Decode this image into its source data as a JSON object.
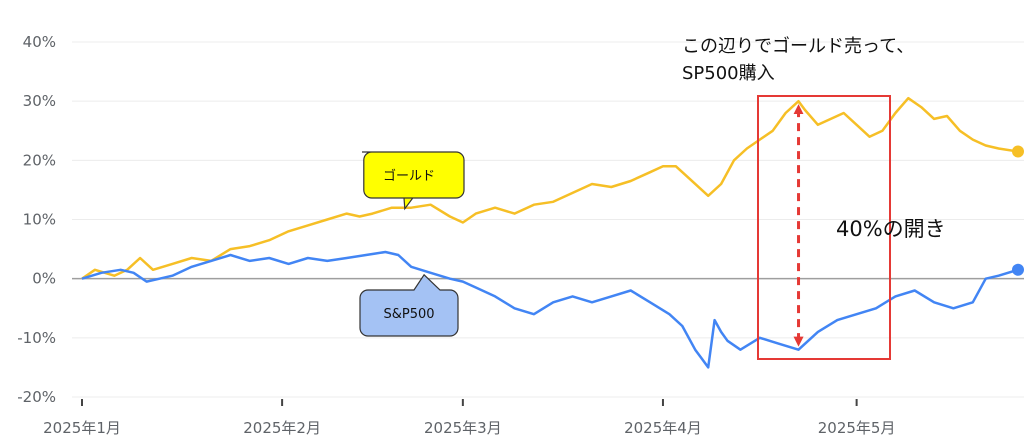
{
  "chart_data": {
    "type": "line",
    "title": "",
    "xlabel": "",
    "ylabel": "",
    "ylim": [
      -20,
      40
    ],
    "y_ticks": [
      40,
      30,
      20,
      10,
      0,
      -10,
      -20
    ],
    "y_tick_labels": [
      "40%",
      "30%",
      "20%",
      "10%",
      "0%",
      "-10%",
      "-20%"
    ],
    "x_tick_labels": [
      "2025年1月",
      "2025年2月",
      "2025年3月",
      "2025年4月",
      "2025年5月"
    ],
    "x_tick_dates": [
      "2025-01-01",
      "2025-02-01",
      "2025-03-01",
      "2025-04-01",
      "2025-05-01"
    ],
    "grid": true,
    "series": [
      {
        "name": "ゴールド",
        "color": "#f6bf26",
        "points": [
          [
            "2025-01-01",
            0
          ],
          [
            "2025-01-03",
            1.5
          ],
          [
            "2025-01-06",
            0.5
          ],
          [
            "2025-01-08",
            1.5
          ],
          [
            "2025-01-10",
            3.5
          ],
          [
            "2025-01-12",
            1.5
          ],
          [
            "2025-01-15",
            2.5
          ],
          [
            "2025-01-18",
            3.5
          ],
          [
            "2025-01-21",
            3
          ],
          [
            "2025-01-24",
            5
          ],
          [
            "2025-01-27",
            5.5
          ],
          [
            "2025-01-30",
            6.5
          ],
          [
            "2025-02-02",
            8
          ],
          [
            "2025-02-05",
            9
          ],
          [
            "2025-02-08",
            10
          ],
          [
            "2025-02-11",
            11
          ],
          [
            "2025-02-13",
            10.5
          ],
          [
            "2025-02-15",
            11
          ],
          [
            "2025-02-18",
            12
          ],
          [
            "2025-02-21",
            12
          ],
          [
            "2025-02-24",
            12.5
          ],
          [
            "2025-02-27",
            10.5
          ],
          [
            "2025-03-01",
            9.5
          ],
          [
            "2025-03-03",
            11
          ],
          [
            "2025-03-06",
            12
          ],
          [
            "2025-03-09",
            11
          ],
          [
            "2025-03-12",
            12.5
          ],
          [
            "2025-03-15",
            13
          ],
          [
            "2025-03-18",
            14.5
          ],
          [
            "2025-03-21",
            16
          ],
          [
            "2025-03-24",
            15.5
          ],
          [
            "2025-03-27",
            16.5
          ],
          [
            "2025-03-30",
            18
          ],
          [
            "2025-04-01",
            19
          ],
          [
            "2025-04-03",
            19
          ],
          [
            "2025-04-05",
            17
          ],
          [
            "2025-04-08",
            14
          ],
          [
            "2025-04-10",
            16
          ],
          [
            "2025-04-12",
            20
          ],
          [
            "2025-04-14",
            22
          ],
          [
            "2025-04-16",
            23.5
          ],
          [
            "2025-04-18",
            25
          ],
          [
            "2025-04-20",
            28
          ],
          [
            "2025-04-22",
            30
          ],
          [
            "2025-04-23",
            28.5
          ],
          [
            "2025-04-25",
            26
          ],
          [
            "2025-04-27",
            27
          ],
          [
            "2025-04-29",
            28
          ],
          [
            "2025-05-01",
            26
          ],
          [
            "2025-05-03",
            24
          ],
          [
            "2025-05-05",
            25
          ],
          [
            "2025-05-07",
            28
          ],
          [
            "2025-05-09",
            30.5
          ],
          [
            "2025-05-11",
            29
          ],
          [
            "2025-05-13",
            27
          ],
          [
            "2025-05-15",
            27.5
          ],
          [
            "2025-05-17",
            25
          ],
          [
            "2025-05-19",
            23.5
          ],
          [
            "2025-05-21",
            22.5
          ],
          [
            "2025-05-23",
            22
          ],
          [
            "2025-05-26",
            21.5
          ]
        ]
      },
      {
        "name": "S&P500",
        "color": "#4285f4",
        "points": [
          [
            "2025-01-01",
            0
          ],
          [
            "2025-01-04",
            1
          ],
          [
            "2025-01-07",
            1.5
          ],
          [
            "2025-01-09",
            1
          ],
          [
            "2025-01-11",
            -0.5
          ],
          [
            "2025-01-13",
            0
          ],
          [
            "2025-01-15",
            0.5
          ],
          [
            "2025-01-18",
            2
          ],
          [
            "2025-01-21",
            3
          ],
          [
            "2025-01-24",
            4
          ],
          [
            "2025-01-27",
            3
          ],
          [
            "2025-01-30",
            3.5
          ],
          [
            "2025-02-02",
            2.5
          ],
          [
            "2025-02-05",
            3.5
          ],
          [
            "2025-02-08",
            3
          ],
          [
            "2025-02-11",
            3.5
          ],
          [
            "2025-02-14",
            4
          ],
          [
            "2025-02-17",
            4.5
          ],
          [
            "2025-02-19",
            4
          ],
          [
            "2025-02-21",
            2
          ],
          [
            "2025-02-24",
            1
          ],
          [
            "2025-02-27",
            0
          ],
          [
            "2025-03-01",
            -0.5
          ],
          [
            "2025-03-03",
            -1.5
          ],
          [
            "2025-03-06",
            -3
          ],
          [
            "2025-03-09",
            -5
          ],
          [
            "2025-03-12",
            -6
          ],
          [
            "2025-03-15",
            -4
          ],
          [
            "2025-03-18",
            -3
          ],
          [
            "2025-03-21",
            -4
          ],
          [
            "2025-03-24",
            -3
          ],
          [
            "2025-03-27",
            -2
          ],
          [
            "2025-03-30",
            -4
          ],
          [
            "2025-04-02",
            -6
          ],
          [
            "2025-04-04",
            -8
          ],
          [
            "2025-04-06",
            -12
          ],
          [
            "2025-04-07",
            -13.5
          ],
          [
            "2025-04-08",
            -15
          ],
          [
            "2025-04-09",
            -7
          ],
          [
            "2025-04-10",
            -9
          ],
          [
            "2025-04-11",
            -10.5
          ],
          [
            "2025-04-13",
            -12
          ],
          [
            "2025-04-16",
            -10
          ],
          [
            "2025-04-19",
            -11
          ],
          [
            "2025-04-22",
            -12
          ],
          [
            "2025-04-25",
            -9
          ],
          [
            "2025-04-28",
            -7
          ],
          [
            "2025-05-01",
            -6
          ],
          [
            "2025-05-04",
            -5
          ],
          [
            "2025-05-07",
            -3
          ],
          [
            "2025-05-10",
            -2
          ],
          [
            "2025-05-13",
            -4
          ],
          [
            "2025-05-16",
            -5
          ],
          [
            "2025-05-19",
            -4
          ],
          [
            "2025-05-21",
            0
          ],
          [
            "2025-05-23",
            0.5
          ],
          [
            "2025-05-26",
            1.5
          ]
        ]
      }
    ],
    "series_labels": [
      {
        "text": "ゴールド",
        "fill": "#ffff00",
        "anchor_date": "2025-02-20",
        "anchor_value": 12.5
      },
      {
        "text": "S&P500",
        "fill": "#a4c2f4",
        "anchor_date": "2025-02-23",
        "anchor_value": 1
      }
    ],
    "annotations": {
      "note_line1": "この辺りでゴールド売って、",
      "note_line2": "SP500購入",
      "gap_label": "40%の開き",
      "box_color": "#e53935",
      "arrow_color": "#e53935",
      "arrow_date": "2025-04-22",
      "arrow_top_value": 30,
      "arrow_bottom_value": -12
    }
  }
}
